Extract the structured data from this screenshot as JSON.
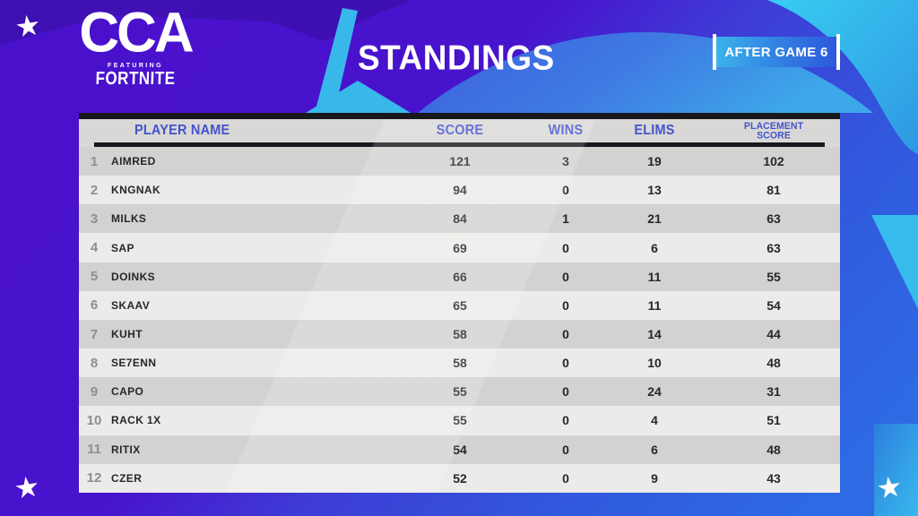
{
  "brand": {
    "name": "CCA",
    "featuring": "FEATURING",
    "game": "FORTNITE"
  },
  "title": "STANDINGS",
  "badge": {
    "label": "AFTER GAME 6"
  },
  "table": {
    "columns": [
      "PLAYER NAME",
      "SCORE",
      "WINS",
      "ELIMS",
      "PLACEMENT SCORE"
    ],
    "placement_lines": [
      "PLACEMENT",
      "SCORE"
    ],
    "rows": [
      {
        "rank": "1",
        "player": "AIMRED",
        "score": "121",
        "wins": "3",
        "elims": "19",
        "placement": "102"
      },
      {
        "rank": "2",
        "player": "KNGNAK",
        "score": "94",
        "wins": "0",
        "elims": "13",
        "placement": "81"
      },
      {
        "rank": "3",
        "player": "MILKS",
        "score": "84",
        "wins": "1",
        "elims": "21",
        "placement": "63"
      },
      {
        "rank": "4",
        "player": "SAP",
        "score": "69",
        "wins": "0",
        "elims": "6",
        "placement": "63"
      },
      {
        "rank": "5",
        "player": "DOINKS",
        "score": "66",
        "wins": "0",
        "elims": "11",
        "placement": "55"
      },
      {
        "rank": "6",
        "player": "SKAAV",
        "score": "65",
        "wins": "0",
        "elims": "11",
        "placement": "54"
      },
      {
        "rank": "7",
        "player": "KUHT",
        "score": "58",
        "wins": "0",
        "elims": "14",
        "placement": "44"
      },
      {
        "rank": "8",
        "player": "SE7ENN",
        "score": "58",
        "wins": "0",
        "elims": "10",
        "placement": "48"
      },
      {
        "rank": "9",
        "player": "CAPO",
        "score": "55",
        "wins": "0",
        "elims": "24",
        "placement": "31"
      },
      {
        "rank": "10",
        "player": "RACK 1X",
        "score": "55",
        "wins": "0",
        "elims": "4",
        "placement": "51"
      },
      {
        "rank": "11",
        "player": "RITIX",
        "score": "54",
        "wins": "0",
        "elims": "6",
        "placement": "48"
      },
      {
        "rank": "12",
        "player": "CZER",
        "score": "52",
        "wins": "0",
        "elims": "9",
        "placement": "43"
      }
    ]
  },
  "decor": {
    "star_glyph": "★",
    "star_count": 3
  },
  "colors": {
    "purple": "#4a11cd",
    "blue": "#2e6ae4",
    "cyan": "#38c2ec",
    "swoosh_blue": "#3f7ce3",
    "header_text": "#4353cb",
    "table_dark_bar": "#17171c",
    "row_odd": "#d3d2d0",
    "row_even": "#ecebe9",
    "text_dark": "#27272b",
    "rank_gray": "#8e8e8e",
    "badge_gradient_left": "#3db6ea",
    "badge_gradient_right": "#2d55dc"
  }
}
